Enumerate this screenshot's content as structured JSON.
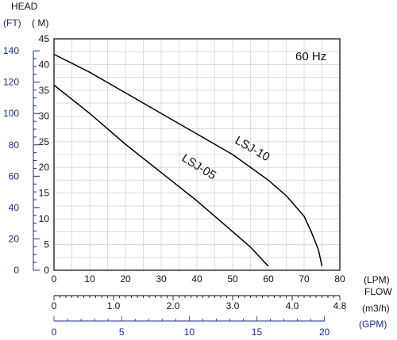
{
  "chart_data": {
    "type": "line",
    "annotation": "60 Hz",
    "head_title": "HEAD",
    "y_unit_ft": "(FT)",
    "y_unit_m": "( M)",
    "y_m_ticks": [
      "45",
      "40",
      "35",
      "30",
      "25",
      "20",
      "15",
      "10",
      "5",
      "0"
    ],
    "y_ft_ticks": [
      "140",
      "120",
      "100",
      "80",
      "60",
      "40",
      "20",
      "0"
    ],
    "x_lpm_ticks": [
      "0",
      "10",
      "20",
      "30",
      "40",
      "50",
      "60",
      "70",
      "80"
    ],
    "x_m3h_ticks": [
      "0",
      "1.0",
      "2.0",
      "3.0",
      "4.0",
      "4.8"
    ],
    "x_gpm_ticks": [
      "0",
      "5",
      "10",
      "15",
      "20"
    ],
    "flow_label": "FLOW",
    "lpm_unit": "(LPM)",
    "m3h_unit": "(m3/h)",
    "gpm_unit": "(GPM)",
    "xlim": [
      0,
      80
    ],
    "ylim": [
      0,
      45
    ],
    "grid": true,
    "series": [
      {
        "name": "LSJ-05",
        "x": [
          0,
          10,
          20,
          30,
          40,
          50,
          55,
          57,
          59,
          60
        ],
        "y": [
          36,
          30.5,
          24.5,
          19,
          13.5,
          7.5,
          4.5,
          3,
          1.5,
          0.8
        ]
      },
      {
        "name": "LSJ-10",
        "x": [
          0,
          10,
          20,
          30,
          40,
          50,
          60,
          65,
          70,
          72,
          74,
          75
        ],
        "y": [
          42,
          38.5,
          34.5,
          30.5,
          26.5,
          22.5,
          17.5,
          14.5,
          10.5,
          7.5,
          4,
          0.8
        ]
      }
    ]
  }
}
